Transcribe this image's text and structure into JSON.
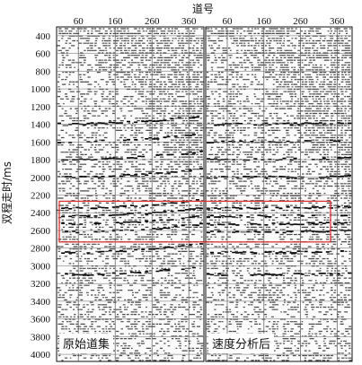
{
  "figure": {
    "x_axis_title": "道号",
    "y_axis_title": "双程走时/ms",
    "accent_color": "#e03030"
  },
  "chart_data": {
    "type": "heatmap",
    "x_ticks": [
      60,
      160,
      260,
      360
    ],
    "y_ticks": [
      400,
      600,
      800,
      1000,
      1200,
      1400,
      1600,
      1800,
      2000,
      2200,
      2400,
      2600,
      2800,
      3000,
      3200,
      3400,
      3600,
      3800,
      4000
    ],
    "xlim": [
      1,
      401
    ],
    "ylim": [
      300,
      4080
    ],
    "highlight_window": {
      "y_range": [
        2270,
        2730
      ],
      "color": "#e03030"
    },
    "panels": [
      {
        "label": "原始道集"
      },
      {
        "label": "速度分析后"
      }
    ]
  }
}
